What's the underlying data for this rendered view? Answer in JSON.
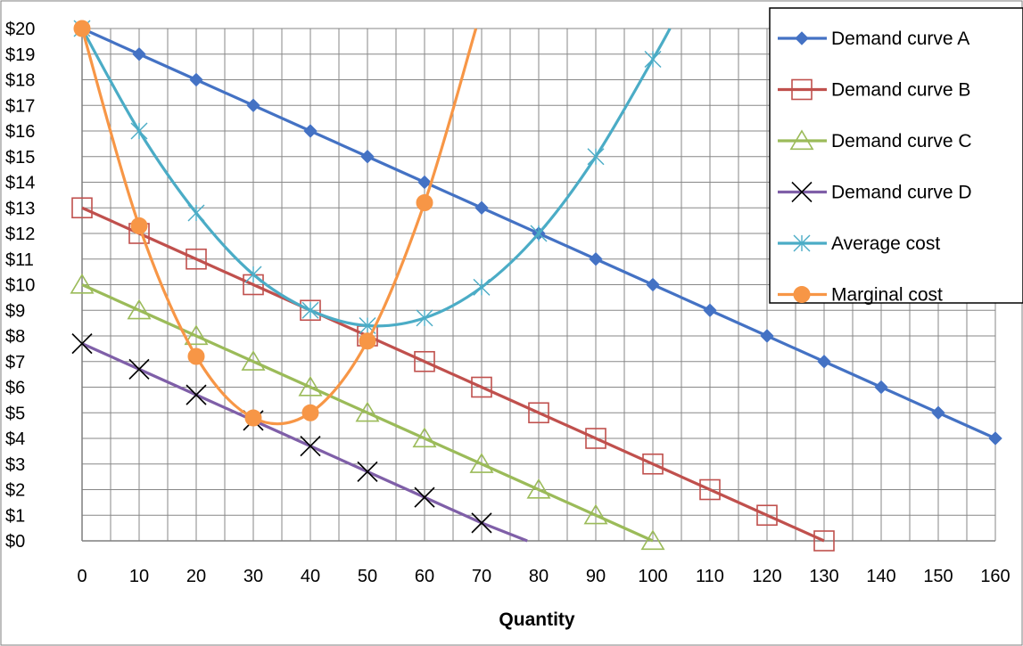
{
  "chart_data": {
    "type": "line",
    "xlabel": "Quantity",
    "ylabel": "",
    "xlim": [
      0,
      160
    ],
    "ylim": [
      0,
      20
    ],
    "x_ticks": [
      0,
      10,
      20,
      30,
      40,
      50,
      60,
      70,
      80,
      90,
      100,
      110,
      120,
      130,
      140,
      150,
      160
    ],
    "y_ticks": [
      0,
      1,
      2,
      3,
      4,
      5,
      6,
      7,
      8,
      9,
      10,
      11,
      12,
      13,
      14,
      15,
      16,
      17,
      18,
      19,
      20
    ],
    "y_tick_format": "$",
    "grid": true,
    "legend_position": "top-right",
    "series": [
      {
        "name": "Demand curve A",
        "color": "#4472C4",
        "marker": "diamond",
        "smooth": false,
        "x": [
          0,
          10,
          20,
          30,
          40,
          50,
          60,
          70,
          80,
          90,
          100,
          110,
          120,
          130,
          140,
          150,
          160
        ],
        "y": [
          20,
          19,
          18,
          17,
          16,
          15,
          14,
          13,
          12,
          11,
          10,
          9,
          8,
          7,
          6,
          5,
          4
        ]
      },
      {
        "name": "Demand curve B",
        "color": "#C0504D",
        "marker": "square-open",
        "smooth": false,
        "x": [
          0,
          10,
          20,
          30,
          40,
          50,
          60,
          70,
          80,
          90,
          100,
          110,
          120,
          130
        ],
        "y": [
          13,
          12,
          11,
          10,
          9,
          8,
          7,
          6,
          5,
          4,
          3,
          2,
          1,
          0
        ]
      },
      {
        "name": "Demand curve C",
        "color": "#9BBB59",
        "marker": "triangle-open",
        "smooth": false,
        "x": [
          0,
          10,
          20,
          30,
          40,
          50,
          60,
          70,
          80,
          90,
          100
        ],
        "y": [
          10,
          9,
          8,
          7,
          6,
          5,
          4,
          3,
          2,
          1,
          0
        ]
      },
      {
        "name": "Demand curve D",
        "color": "#7F5FA8",
        "marker": "x",
        "smooth": false,
        "x": [
          0,
          10,
          20,
          30,
          40,
          50,
          60,
          70
        ],
        "y": [
          7.7,
          6.7,
          5.7,
          4.7,
          3.7,
          2.7,
          1.7,
          0.7
        ],
        "line_end": [
          78,
          0
        ]
      },
      {
        "name": "Average cost",
        "color": "#4BACC6",
        "marker": "asterisk",
        "smooth": true,
        "x": [
          0,
          10,
          20,
          30,
          40,
          50,
          60,
          70,
          80,
          90,
          100
        ],
        "y": [
          20,
          16,
          12.8,
          10.4,
          9,
          8.4,
          8.7,
          9.9,
          12,
          15,
          18.8
        ],
        "line_end": [
          103,
          20
        ]
      },
      {
        "name": "Marginal cost",
        "color": "#F79646",
        "marker": "circle",
        "smooth": true,
        "x": [
          0,
          10,
          20,
          30,
          40,
          50,
          60
        ],
        "y": [
          20,
          12.3,
          7.2,
          4.8,
          5,
          7.8,
          13.2
        ],
        "line_end": [
          69,
          20
        ]
      }
    ]
  }
}
